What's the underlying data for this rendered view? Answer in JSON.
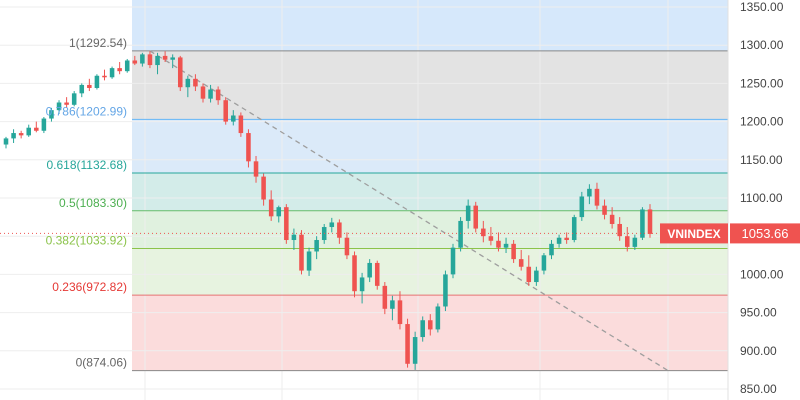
{
  "chart_data": {
    "type": "candlestick",
    "title": "",
    "xlabel": "",
    "ylabel": "",
    "ylim": [
      850,
      1350
    ],
    "y_ticks": [
      "1350.00",
      "1300.00",
      "1250.00",
      "1200.00",
      "1150.00",
      "1100.00",
      "1050.00",
      "1000.00",
      "950.00",
      "900.00",
      "850.00"
    ],
    "grid": true,
    "symbol": "VNINDEX",
    "last_price": 1053.66,
    "last_price_label": "1053.66",
    "colors": {
      "up": "#26a69a",
      "down": "#ef5350",
      "badge": "#ef5350",
      "trendline": "#9e9e9e"
    },
    "fib_levels": [
      {
        "ratio": "1",
        "value": 1292.54,
        "label": "1(1292.54)",
        "line_color": "#888888",
        "label_color": "#666666",
        "zone_color": "#e3e3e3"
      },
      {
        "ratio": "0.786",
        "value": 1202.99,
        "label": "0.786(1202.99)",
        "line_color": "#64b5f6",
        "label_color": "#64a6e6",
        "zone_color": "#dbeaf9"
      },
      {
        "ratio": "0.618",
        "value": 1132.68,
        "label": "0.618(1132.68)",
        "line_color": "#26a69a",
        "label_color": "#26a69a",
        "zone_color": "#d3ece9"
      },
      {
        "ratio": "0.5",
        "value": 1083.3,
        "label": "0.5(1083.30)",
        "line_color": "#66bb6a",
        "label_color": "#4caf50",
        "zone_color": "#e0f1df"
      },
      {
        "ratio": "0.382",
        "value": 1033.92,
        "label": "0.382(1033.92)",
        "line_color": "#8bc34a",
        "label_color": "#8bc34a",
        "zone_color": "#e7f3e0"
      },
      {
        "ratio": "0.236",
        "value": 972.82,
        "label": "0.236(972.82)",
        "line_color": "#e57373",
        "label_color": "#e53935",
        "zone_color": "#fbdcdc"
      },
      {
        "ratio": "0",
        "value": 874.06,
        "label": "0(874.06)",
        "line_color": "#888888",
        "label_color": "#666666",
        "zone_color": ""
      }
    ],
    "candles": [
      [
        1170,
        1180,
        1165,
        1178
      ],
      [
        1178,
        1190,
        1172,
        1185
      ],
      [
        1185,
        1188,
        1178,
        1182
      ],
      [
        1182,
        1196,
        1180,
        1192
      ],
      [
        1192,
        1200,
        1186,
        1188
      ],
      [
        1188,
        1206,
        1185,
        1204
      ],
      [
        1204,
        1218,
        1200,
        1215
      ],
      [
        1215,
        1228,
        1210,
        1225
      ],
      [
        1225,
        1232,
        1218,
        1222
      ],
      [
        1222,
        1240,
        1220,
        1237
      ],
      [
        1237,
        1250,
        1232,
        1248
      ],
      [
        1248,
        1256,
        1240,
        1244
      ],
      [
        1244,
        1262,
        1242,
        1260
      ],
      [
        1260,
        1268,
        1254,
        1258
      ],
      [
        1258,
        1272,
        1256,
        1270
      ],
      [
        1270,
        1278,
        1262,
        1266
      ],
      [
        1266,
        1282,
        1264,
        1280
      ],
      [
        1280,
        1286,
        1274,
        1276
      ],
      [
        1276,
        1290,
        1272,
        1288
      ],
      [
        1288,
        1292,
        1270,
        1274
      ],
      [
        1274,
        1290,
        1262,
        1286
      ],
      [
        1286,
        1292,
        1278,
        1281
      ],
      [
        1281,
        1288,
        1270,
        1284
      ],
      [
        1284,
        1286,
        1240,
        1245
      ],
      [
        1245,
        1260,
        1232,
        1256
      ],
      [
        1256,
        1262,
        1240,
        1246
      ],
      [
        1246,
        1250,
        1225,
        1230
      ],
      [
        1230,
        1248,
        1225,
        1242
      ],
      [
        1242,
        1246,
        1222,
        1228
      ],
      [
        1228,
        1232,
        1196,
        1200
      ],
      [
        1200,
        1215,
        1195,
        1208
      ],
      [
        1208,
        1212,
        1180,
        1185
      ],
      [
        1185,
        1190,
        1140,
        1148
      ],
      [
        1148,
        1155,
        1120,
        1128
      ],
      [
        1128,
        1132,
        1090,
        1098
      ],
      [
        1098,
        1110,
        1070,
        1076
      ],
      [
        1076,
        1090,
        1068,
        1088
      ],
      [
        1088,
        1092,
        1040,
        1045
      ],
      [
        1045,
        1060,
        1032,
        1052
      ],
      [
        1052,
        1058,
        1000,
        1005
      ],
      [
        1005,
        1035,
        998,
        1030
      ],
      [
        1030,
        1050,
        1020,
        1045
      ],
      [
        1045,
        1066,
        1040,
        1062
      ],
      [
        1062,
        1074,
        1055,
        1068
      ],
      [
        1068,
        1072,
        1040,
        1048
      ],
      [
        1048,
        1055,
        1020,
        1025
      ],
      [
        1025,
        1030,
        970,
        978
      ],
      [
        978,
        1002,
        962,
        996
      ],
      [
        996,
        1020,
        990,
        1015
      ],
      [
        1015,
        1018,
        980,
        985
      ],
      [
        985,
        990,
        948,
        955
      ],
      [
        955,
        972,
        940,
        966
      ],
      [
        966,
        978,
        928,
        935
      ],
      [
        935,
        942,
        878,
        883
      ],
      [
        883,
        925,
        875,
        918
      ],
      [
        918,
        945,
        912,
        940
      ],
      [
        940,
        948,
        920,
        928
      ],
      [
        928,
        962,
        924,
        958
      ],
      [
        958,
        1005,
        952,
        1000
      ],
      [
        1000,
        1040,
        995,
        1035
      ],
      [
        1035,
        1075,
        1030,
        1070
      ],
      [
        1070,
        1098,
        1060,
        1090
      ],
      [
        1090,
        1095,
        1055,
        1060
      ],
      [
        1060,
        1070,
        1042,
        1050
      ],
      [
        1050,
        1062,
        1038,
        1044
      ],
      [
        1044,
        1055,
        1030,
        1035
      ],
      [
        1035,
        1048,
        1028,
        1040
      ],
      [
        1040,
        1045,
        1015,
        1020
      ],
      [
        1020,
        1032,
        1005,
        1010
      ],
      [
        1010,
        1025,
        985,
        990
      ],
      [
        990,
        1010,
        985,
        1005
      ],
      [
        1005,
        1028,
        1000,
        1025
      ],
      [
        1025,
        1045,
        1020,
        1040
      ],
      [
        1040,
        1052,
        1035,
        1048
      ],
      [
        1048,
        1055,
        1040,
        1045
      ],
      [
        1045,
        1078,
        1042,
        1075
      ],
      [
        1075,
        1108,
        1070,
        1102
      ],
      [
        1102,
        1118,
        1092,
        1112
      ],
      [
        1112,
        1120,
        1085,
        1090
      ],
      [
        1090,
        1098,
        1072,
        1078
      ],
      [
        1078,
        1088,
        1060,
        1066
      ],
      [
        1066,
        1075,
        1044,
        1050
      ],
      [
        1050,
        1062,
        1030,
        1036
      ],
      [
        1036,
        1052,
        1032,
        1048
      ],
      [
        1048,
        1088,
        1045,
        1085
      ],
      [
        1085,
        1092,
        1048,
        1053
      ]
    ]
  },
  "ui": {
    "price_badge_symbol": "VNINDEX",
    "price_badge_value": "1053.66"
  }
}
